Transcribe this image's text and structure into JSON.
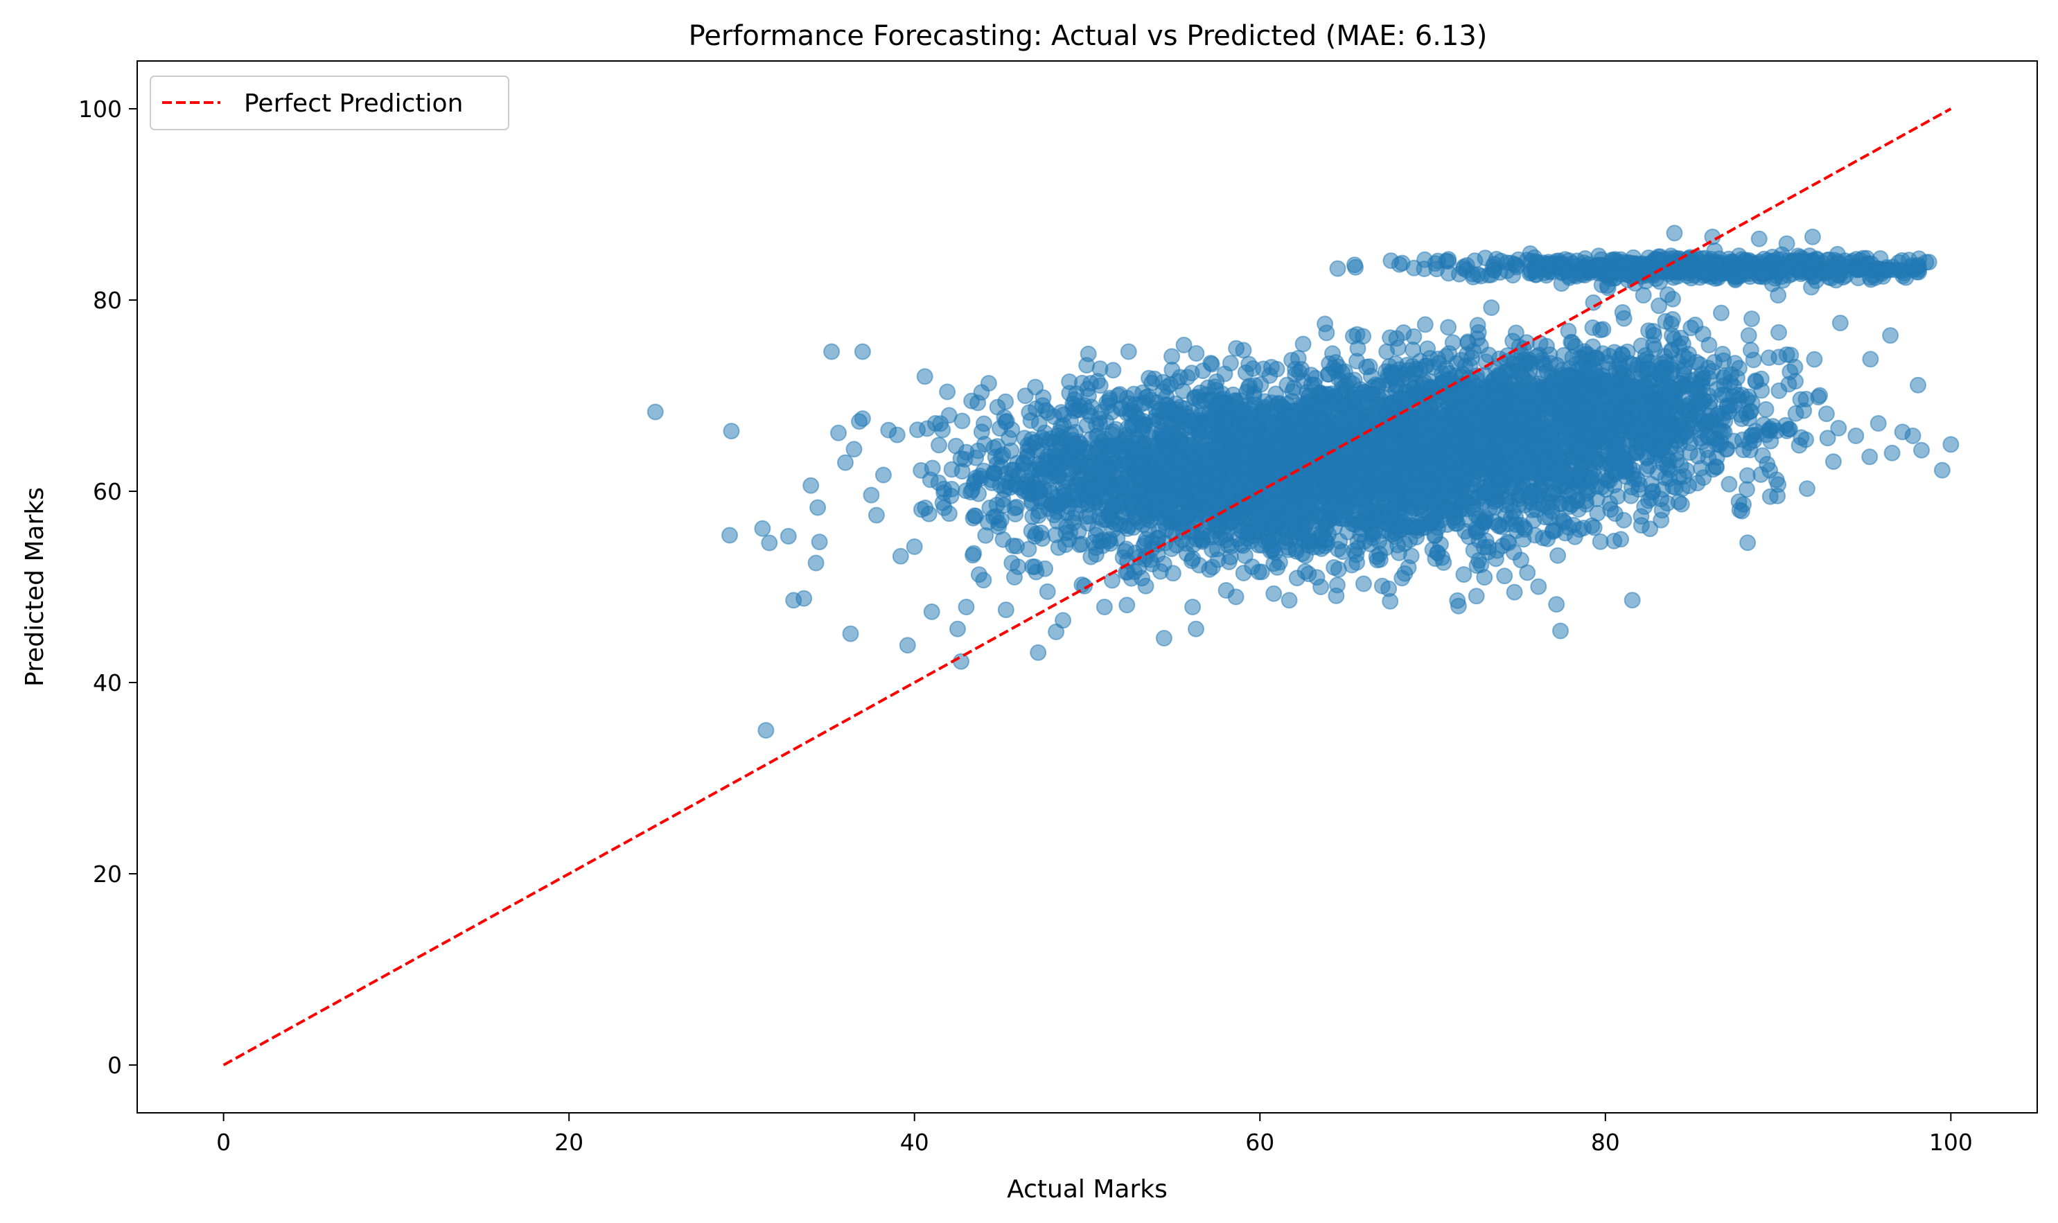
{
  "chart_data": {
    "type": "scatter",
    "title": "Performance Forecasting: Actual vs Predicted (MAE: 6.13)",
    "xlabel": "Actual Marks",
    "ylabel": "Predicted Marks",
    "xlim": [
      -5,
      105
    ],
    "ylim": [
      -5,
      105
    ],
    "xticks": [
      0,
      20,
      40,
      60,
      80,
      100
    ],
    "yticks": [
      0,
      20,
      40,
      60,
      80,
      100
    ],
    "grid": false,
    "legend_position": "top-left",
    "colors": {
      "points": "#1f77b4",
      "reference_line": "#ff0000"
    },
    "point_alpha": 0.5,
    "series": [
      {
        "kind": "scatter",
        "clusters": [
          {
            "x_center": 58,
            "y_center": 62,
            "x_spread": 7,
            "y_spread": 4.5,
            "count": 2200
          },
          {
            "x_center": 70,
            "y_center": 64,
            "x_spread": 7,
            "y_spread": 4.5,
            "count": 2000
          },
          {
            "x_center": 80,
            "y_center": 69,
            "x_spread": 5,
            "y_spread": 3.5,
            "count": 900
          },
          {
            "x_center": 85,
            "y_center": 83.4,
            "x_spread": 7,
            "y_spread": 0.6,
            "count": 650
          }
        ],
        "outliers": [
          [
            25.0,
            68.3
          ],
          [
            29.4,
            66.3
          ],
          [
            29.3,
            55.4
          ],
          [
            31.4,
            35.0
          ],
          [
            31.6,
            54.6
          ],
          [
            31.2,
            56.1
          ],
          [
            32.7,
            55.3
          ],
          [
            33.0,
            48.6
          ],
          [
            33.6,
            48.8
          ],
          [
            34.0,
            60.6
          ],
          [
            34.3,
            52.5
          ],
          [
            34.4,
            58.3
          ],
          [
            34.5,
            54.7
          ],
          [
            35.2,
            74.6
          ],
          [
            35.6,
            66.1
          ],
          [
            36.0,
            63.0
          ],
          [
            36.3,
            45.1
          ],
          [
            36.5,
            64.4
          ],
          [
            36.8,
            67.3
          ],
          [
            37.0,
            74.6
          ],
          [
            37.0,
            67.6
          ],
          [
            37.5,
            59.6
          ],
          [
            37.8,
            57.5
          ],
          [
            38.2,
            61.7
          ],
          [
            38.5,
            66.4
          ],
          [
            39.0,
            65.9
          ],
          [
            39.2,
            53.2
          ],
          [
            39.6,
            43.9
          ],
          [
            40.0,
            54.2
          ],
          [
            40.6,
            72.0
          ],
          [
            41.0,
            47.4
          ],
          [
            41.4,
            60.9
          ],
          [
            41.9,
            70.4
          ],
          [
            42.5,
            45.6
          ],
          [
            42.7,
            42.2
          ],
          [
            43.0,
            47.9
          ],
          [
            44.0,
            50.7
          ],
          [
            44.3,
            71.3
          ],
          [
            45.3,
            47.6
          ],
          [
            46.0,
            52.1
          ],
          [
            47.0,
            70.9
          ],
          [
            47.7,
            49.5
          ],
          [
            48.2,
            45.3
          ],
          [
            48.6,
            46.5
          ],
          [
            50.2,
            71.3
          ],
          [
            51.0,
            47.9
          ],
          [
            52.4,
            74.6
          ],
          [
            52.3,
            48.1
          ],
          [
            54.9,
            74.1
          ],
          [
            55.6,
            75.3
          ],
          [
            56.1,
            47.9
          ],
          [
            56.3,
            45.6
          ],
          [
            56.7,
            72.6
          ],
          [
            58.3,
            73.4
          ],
          [
            60.2,
            72.8
          ],
          [
            60.8,
            49.3
          ],
          [
            61.7,
            48.6
          ],
          [
            62.5,
            75.4
          ],
          [
            63.3,
            51.0
          ],
          [
            64.2,
            74.4
          ],
          [
            65.4,
            76.2
          ],
          [
            66.8,
            52.8
          ],
          [
            68.0,
            75.0
          ],
          [
            70.0,
            53.9
          ],
          [
            71.5,
            48.0
          ],
          [
            71.8,
            51.3
          ],
          [
            73.0,
            51.0
          ],
          [
            73.4,
            79.2
          ],
          [
            74.4,
            54.6
          ],
          [
            75.3,
            56.2
          ],
          [
            76.5,
            57.3
          ],
          [
            77.4,
            45.4
          ],
          [
            78.5,
            56.0
          ],
          [
            80.3,
            58.1
          ],
          [
            80.5,
            54.8
          ],
          [
            82.5,
            76.8
          ],
          [
            83.7,
            61.3
          ],
          [
            85.2,
            77.4
          ],
          [
            86.0,
            75.3
          ],
          [
            86.7,
            65.1
          ],
          [
            87.5,
            73.4
          ],
          [
            88.3,
            76.3
          ],
          [
            88.2,
            69.6
          ],
          [
            89.7,
            66.8
          ],
          [
            89.9,
            61.2
          ],
          [
            90.5,
            74.3
          ],
          [
            91.0,
            71.5
          ],
          [
            91.3,
            69.6
          ],
          [
            91.6,
            65.4
          ],
          [
            92.1,
            73.8
          ],
          [
            92.8,
            68.1
          ],
          [
            93.2,
            63.1
          ],
          [
            93.5,
            66.6
          ],
          [
            93.6,
            77.6
          ],
          [
            94.5,
            65.8
          ],
          [
            95.3,
            63.6
          ],
          [
            95.8,
            67.1
          ],
          [
            96.5,
            76.3
          ],
          [
            96.6,
            64.0
          ],
          [
            97.2,
            66.2
          ],
          [
            97.8,
            65.8
          ],
          [
            98.1,
            71.1
          ],
          [
            98.3,
            64.3
          ],
          [
            99.5,
            62.2
          ],
          [
            100.0,
            64.9
          ],
          [
            85.7,
            69.5
          ],
          [
            90.0,
            60.7
          ],
          [
            94.7,
            83.2
          ],
          [
            90.5,
            85.9
          ],
          [
            92.0,
            86.6
          ],
          [
            84.0,
            87.0
          ],
          [
            86.2,
            86.6
          ],
          [
            88.9,
            86.4
          ],
          [
            95.7,
            83.3
          ],
          [
            98.0,
            83.3
          ],
          [
            81.0,
            78.7
          ],
          [
            83.1,
            79.4
          ],
          [
            82.2,
            80.5
          ],
          [
            83.9,
            80.1
          ],
          [
            90.0,
            80.5
          ]
        ]
      },
      {
        "name": "Perfect Prediction",
        "kind": "line",
        "style": "dashed",
        "x": [
          0,
          100
        ],
        "y": [
          0,
          100
        ]
      }
    ]
  }
}
